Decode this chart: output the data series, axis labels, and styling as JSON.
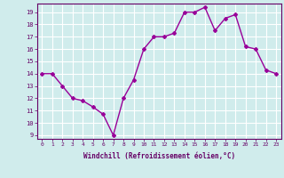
{
  "x": [
    0,
    1,
    2,
    3,
    4,
    5,
    6,
    7,
    8,
    9,
    10,
    11,
    12,
    13,
    14,
    15,
    16,
    17,
    18,
    19,
    20,
    21,
    22,
    23
  ],
  "y": [
    14,
    14,
    13,
    12,
    11.8,
    11.3,
    10.7,
    9,
    12,
    13.5,
    16,
    17,
    17,
    17.3,
    19,
    19,
    19.4,
    17.5,
    18.5,
    18.8,
    16.2,
    16,
    14.3,
    14
  ],
  "line_color": "#990099",
  "marker": "D",
  "marker_size": 2,
  "bg_color": "#d0ecec",
  "grid_color": "#b0d8d8",
  "xlabel": "Windchill (Refroidissement éolien,°C)",
  "xlabel_color": "#660066",
  "tick_color": "#660066",
  "ylim": [
    8.7,
    19.7
  ],
  "xlim": [
    -0.5,
    23.5
  ],
  "yticks": [
    9,
    10,
    11,
    12,
    13,
    14,
    15,
    16,
    17,
    18,
    19
  ],
  "xticks": [
    0,
    1,
    2,
    3,
    4,
    5,
    6,
    7,
    8,
    9,
    10,
    11,
    12,
    13,
    14,
    15,
    16,
    17,
    18,
    19,
    20,
    21,
    22,
    23
  ],
  "spine_color": "#660066",
  "line_width": 1.0
}
